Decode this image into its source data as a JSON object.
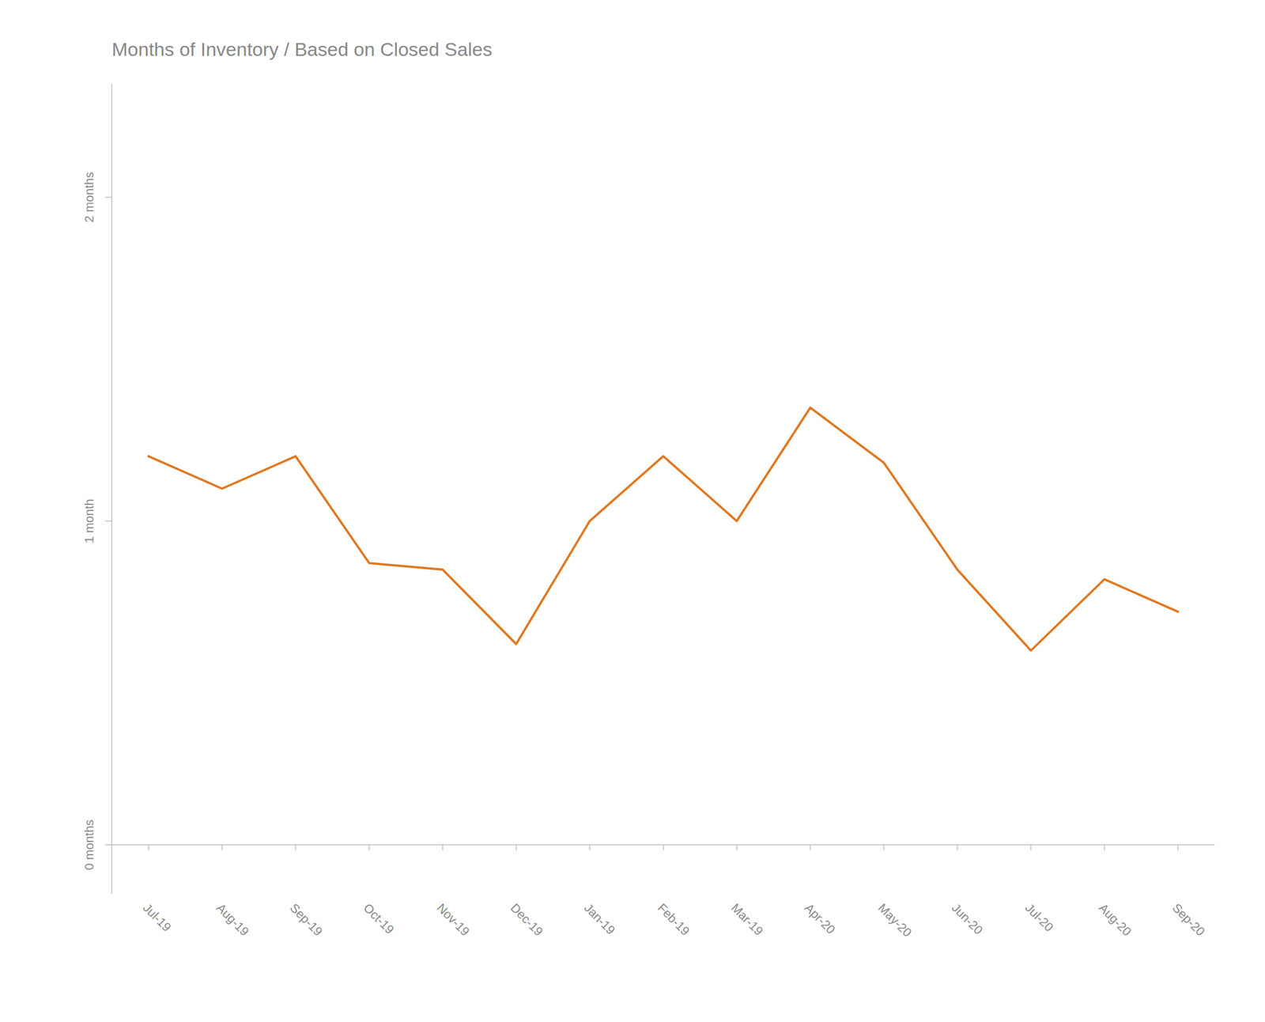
{
  "chart_data": {
    "type": "line",
    "title": "Months of Inventory / Based on Closed Sales",
    "categories": [
      "Jul-19",
      "Aug-19",
      "Sep-19",
      "Oct-19",
      "Nov-19",
      "Dec-19",
      "Jan-19",
      "Feb-19",
      "Mar-19",
      "Apr-20",
      "May-20",
      "Jun-20",
      "Jul-20",
      "Aug-20",
      "Sep-20"
    ],
    "values": [
      1.2,
      1.1,
      1.2,
      0.87,
      0.85,
      0.62,
      1.0,
      1.2,
      1.0,
      1.35,
      1.18,
      0.85,
      0.6,
      0.82,
      0.72
    ],
    "color": "#E07820",
    "ylim": [
      -0.15,
      2.35
    ],
    "yticks": [
      {
        "value": 0,
        "label": "0 months"
      },
      {
        "value": 1,
        "label": "1 month"
      },
      {
        "value": 2,
        "label": "2 months"
      }
    ],
    "grid": false
  }
}
